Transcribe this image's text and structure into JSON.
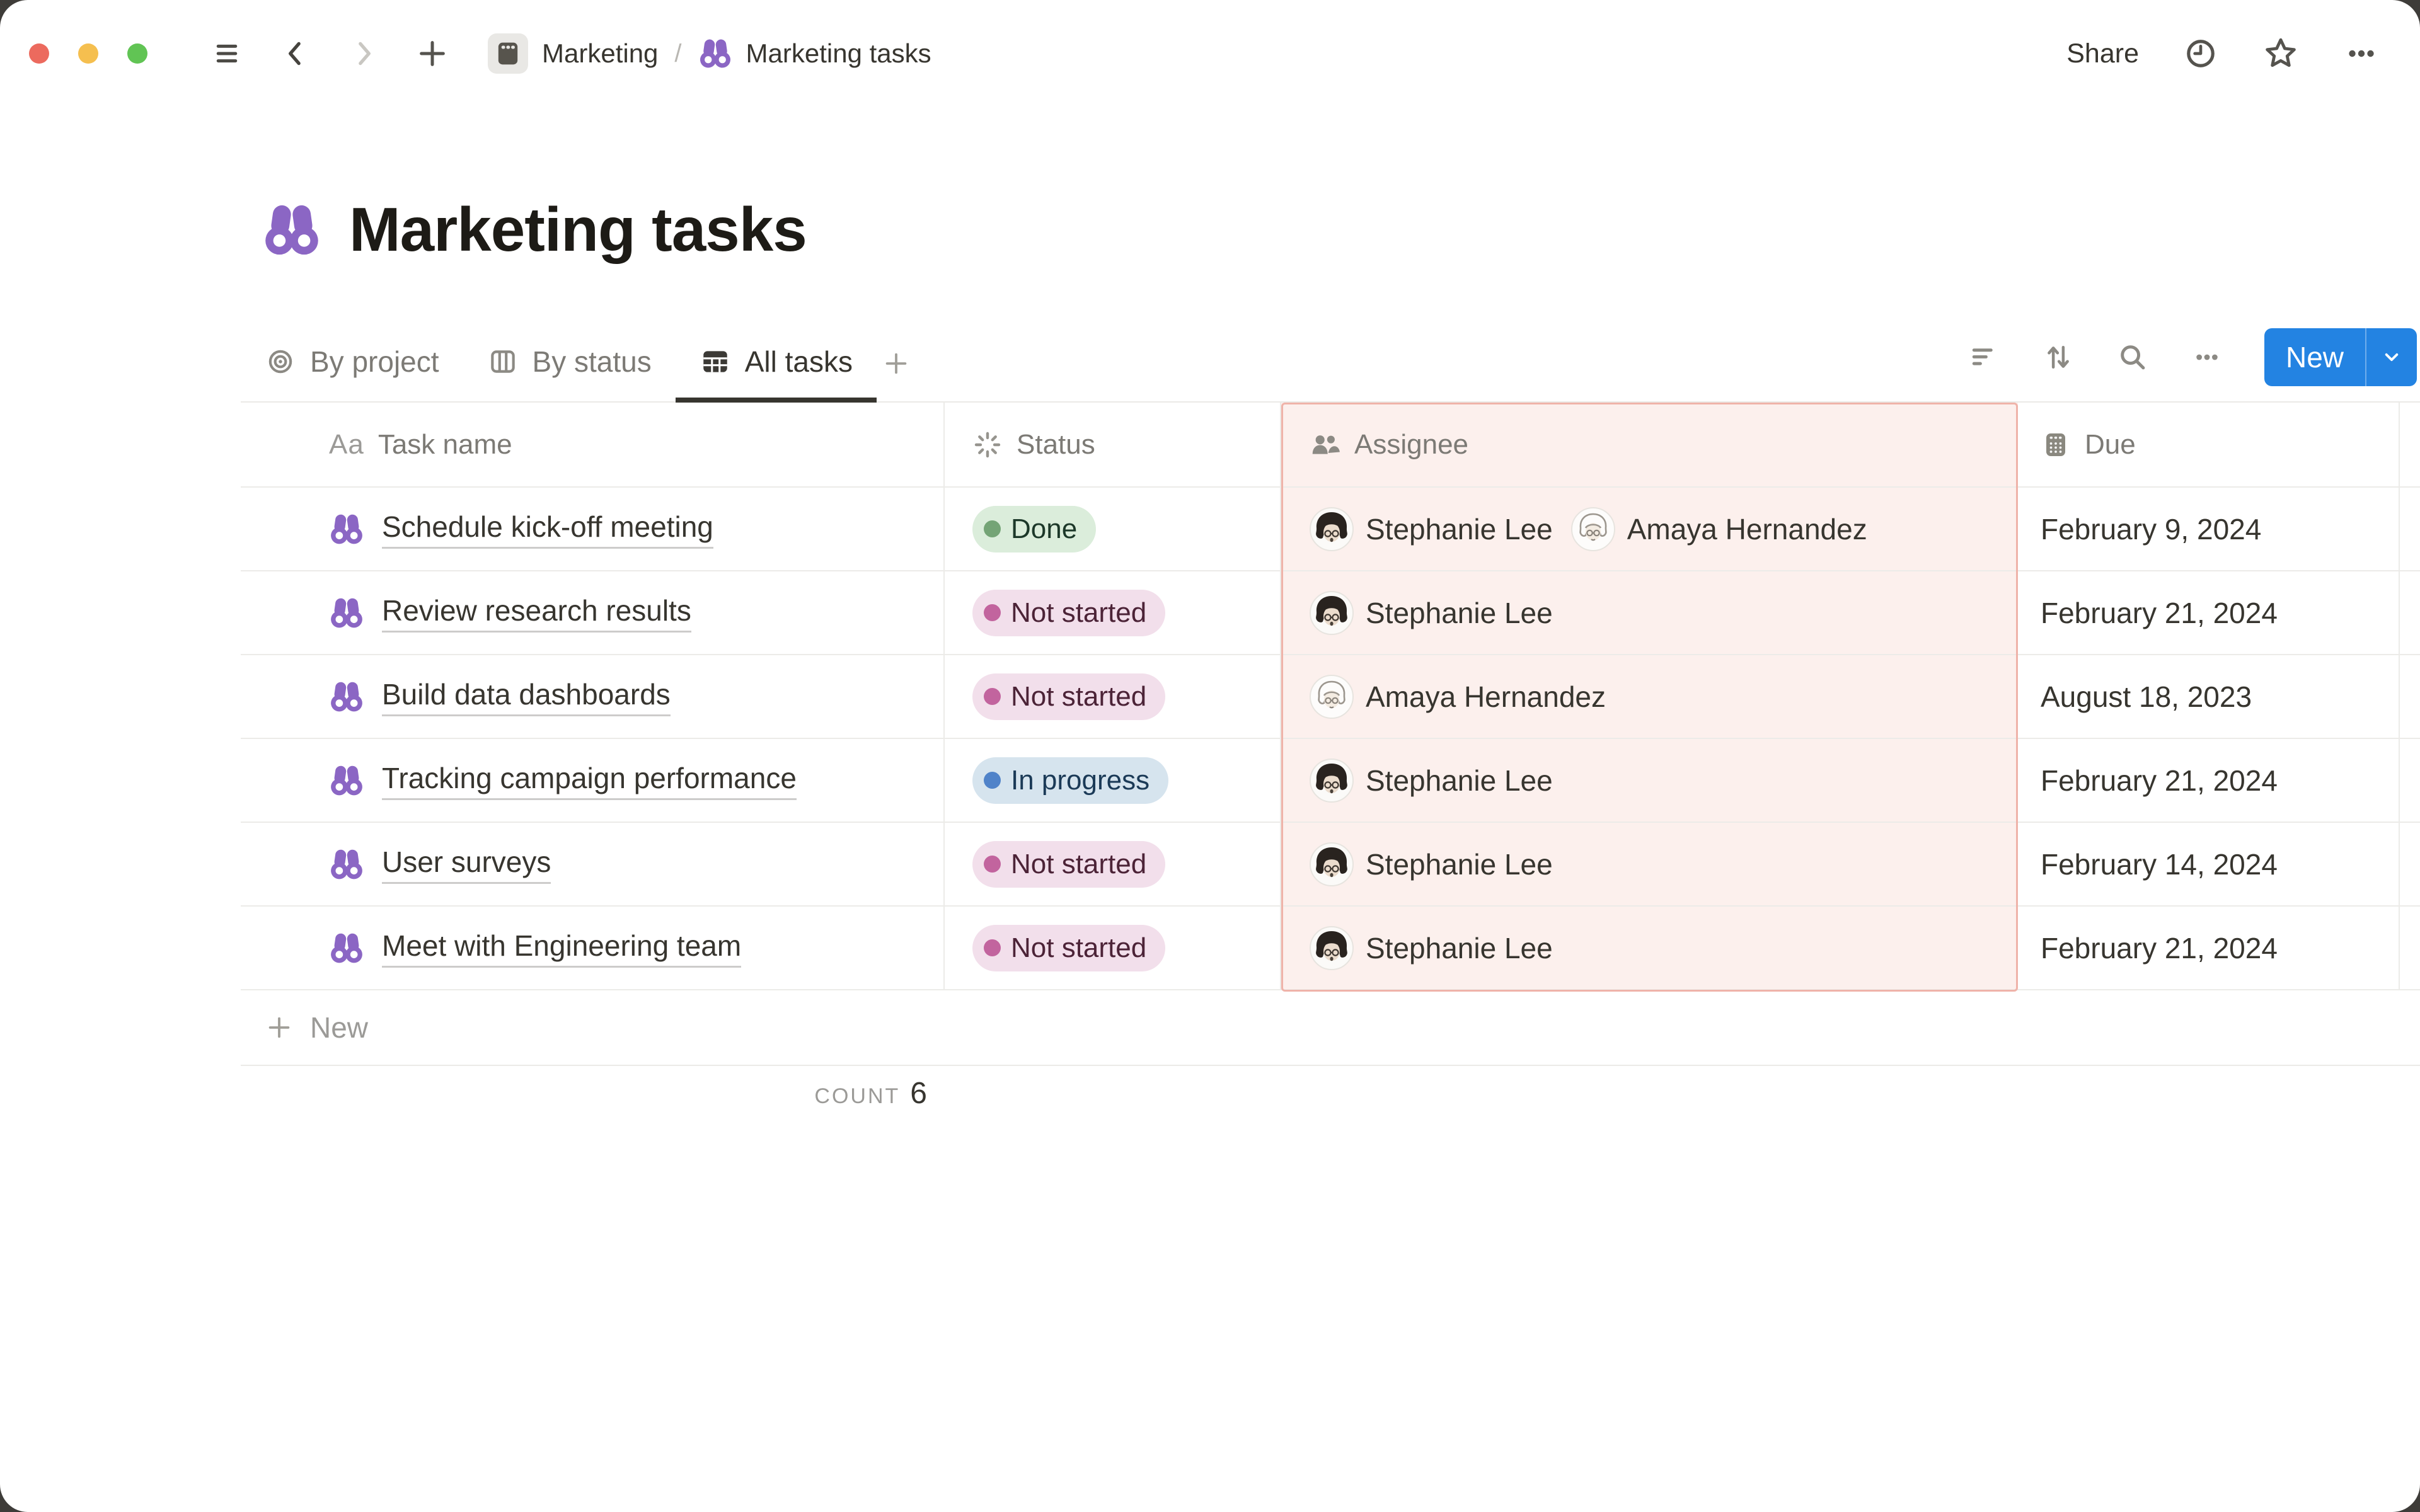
{
  "colors": {
    "accent_blue": "#2383E2",
    "highlight": {
      "bg": "#FCF0ED",
      "border": "#EFB3A9"
    },
    "traffic_lights": {
      "close": "#EC6A5E",
      "minimize": "#F5BF4F",
      "zoom": "#61C454"
    },
    "status": {
      "green": {
        "bg": "#DBEDDB",
        "dot": "#74A476",
        "text": "#1C3829"
      },
      "pink": {
        "bg": "#F2DFEB",
        "dot": "#C2649E",
        "text": "#4C2337"
      },
      "blue": {
        "bg": "#D6E4EE",
        "dot": "#5083C9",
        "text": "#1B3A57"
      }
    }
  },
  "topbar": {
    "breadcrumb": [
      {
        "label": "Marketing",
        "icon": "projects-icon"
      },
      {
        "label": "Marketing tasks",
        "icon": "binoculars-icon"
      }
    ],
    "separator": "/",
    "share_label": "Share"
  },
  "page": {
    "title": "Marketing tasks",
    "icon": "binoculars-icon"
  },
  "views": {
    "tabs": [
      {
        "label": "By project",
        "icon": "target-icon",
        "active": false
      },
      {
        "label": "By status",
        "icon": "board-icon",
        "active": false
      },
      {
        "label": "All tasks",
        "icon": "table-icon",
        "active": true
      }
    ],
    "new_button_label": "New"
  },
  "table": {
    "columns": [
      {
        "label": "Task name",
        "icon": "text-icon",
        "icon_glyph": "Aa"
      },
      {
        "label": "Status",
        "icon": "status-burst-icon"
      },
      {
        "label": "Assignee",
        "icon": "people-icon",
        "highlighted": true
      },
      {
        "label": "Due",
        "icon": "calendar-icon"
      }
    ],
    "rows": [
      {
        "task": "Schedule kick-off meeting",
        "status": {
          "label": "Done",
          "color": "green"
        },
        "assignees": [
          "Stephanie Lee",
          "Amaya Hernandez"
        ],
        "due": "February 9, 2024"
      },
      {
        "task": "Review research results",
        "status": {
          "label": "Not started",
          "color": "pink"
        },
        "assignees": [
          "Stephanie Lee"
        ],
        "due": "February 21, 2024"
      },
      {
        "task": "Build data dashboards",
        "status": {
          "label": "Not started",
          "color": "pink"
        },
        "assignees": [
          "Amaya Hernandez"
        ],
        "due": "August 18, 2023"
      },
      {
        "task": "Tracking campaign performance",
        "status": {
          "label": "In progress",
          "color": "blue"
        },
        "assignees": [
          "Stephanie Lee"
        ],
        "due": "February 21, 2024"
      },
      {
        "task": "User surveys",
        "status": {
          "label": "Not started",
          "color": "pink"
        },
        "assignees": [
          "Stephanie Lee"
        ],
        "due": "February 14, 2024"
      },
      {
        "task": "Meet with Engineering team",
        "status": {
          "label": "Not started",
          "color": "pink"
        },
        "assignees": [
          "Stephanie Lee"
        ],
        "due": "February 21, 2024"
      }
    ],
    "footer": {
      "add_row_label": "New",
      "count_label": "COUNT",
      "count_value": "6"
    }
  },
  "people": {
    "Stephanie Lee": {
      "avatar": "stephanie"
    },
    "Amaya Hernandez": {
      "avatar": "amaya"
    }
  }
}
